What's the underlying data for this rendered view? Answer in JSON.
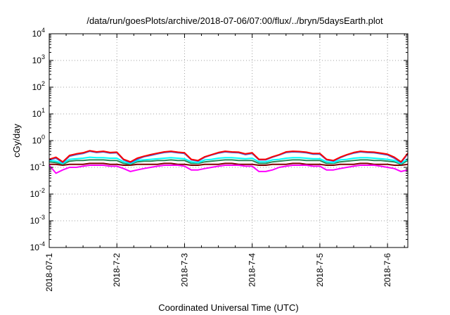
{
  "chart_data": {
    "type": "line",
    "title": "/data/run/goesPlots/archive/2018-07-06/07:00/flux/../bryn/5daysEarth.plot",
    "xlabel": "Coordinated Universal Time (UTC)",
    "ylabel": "cGy/day",
    "yscale": "log",
    "ylim": [
      0.0001,
      10000
    ],
    "xlim": [
      0,
      5.3
    ],
    "grid": true,
    "legend": "none",
    "x_tick_labels": [
      "2018-07-1",
      "2018-7-2",
      "2018-7-3",
      "2018-7-4",
      "2018-7-5",
      "2018-7-6"
    ],
    "x_tick_values": [
      0,
      1,
      2,
      3,
      4,
      5
    ],
    "y_tick_labels": [
      {
        "base": "10",
        "exp": "-4"
      },
      {
        "base": "10",
        "exp": "-3"
      },
      {
        "base": "10",
        "exp": "-2"
      },
      {
        "base": "10",
        "exp": "-1"
      },
      {
        "base": "10",
        "exp": "0"
      },
      {
        "base": "10",
        "exp": "1"
      },
      {
        "base": "10",
        "exp": "2"
      },
      {
        "base": "10",
        "exp": "3"
      },
      {
        "base": "10",
        "exp": "4"
      }
    ],
    "y_tick_values": [
      0.0001,
      0.001,
      0.01,
      0.1,
      1,
      10,
      100,
      1000,
      10000
    ],
    "x": [
      0,
      0.1,
      0.2,
      0.3,
      0.4,
      0.5,
      0.6,
      0.7,
      0.8,
      0.9,
      1.0,
      1.1,
      1.2,
      1.3,
      1.4,
      1.5,
      1.6,
      1.7,
      1.8,
      1.9,
      2.0,
      2.1,
      2.2,
      2.3,
      2.4,
      2.5,
      2.6,
      2.7,
      2.8,
      2.9,
      3.0,
      3.1,
      3.2,
      3.3,
      3.4,
      3.5,
      3.6,
      3.7,
      3.8,
      3.9,
      4.0,
      4.1,
      4.2,
      4.3,
      4.4,
      4.5,
      4.6,
      4.7,
      4.8,
      4.9,
      5.0,
      5.1,
      5.2,
      5.3
    ],
    "series": [
      {
        "color": "#ff0000",
        "values": [
          0.2,
          0.24,
          0.16,
          0.28,
          0.32,
          0.35,
          0.42,
          0.38,
          0.4,
          0.36,
          0.37,
          0.2,
          0.16,
          0.22,
          0.26,
          0.3,
          0.34,
          0.38,
          0.4,
          0.37,
          0.35,
          0.2,
          0.18,
          0.25,
          0.3,
          0.36,
          0.4,
          0.38,
          0.37,
          0.32,
          0.35,
          0.2,
          0.2,
          0.25,
          0.3,
          0.38,
          0.4,
          0.39,
          0.37,
          0.33,
          0.33,
          0.2,
          0.18,
          0.24,
          0.3,
          0.36,
          0.4,
          0.38,
          0.37,
          0.34,
          0.31,
          0.24,
          0.16,
          0.34
        ]
      },
      {
        "color": "#4169e1",
        "values": [
          0.19,
          0.22,
          0.15,
          0.26,
          0.3,
          0.33,
          0.4,
          0.36,
          0.38,
          0.34,
          0.35,
          0.19,
          0.15,
          0.2,
          0.25,
          0.28,
          0.32,
          0.36,
          0.38,
          0.35,
          0.33,
          0.19,
          0.17,
          0.24,
          0.29,
          0.34,
          0.38,
          0.36,
          0.35,
          0.3,
          0.33,
          0.19,
          0.19,
          0.24,
          0.29,
          0.36,
          0.38,
          0.37,
          0.35,
          0.31,
          0.31,
          0.19,
          0.17,
          0.23,
          0.29,
          0.34,
          0.38,
          0.36,
          0.35,
          0.32,
          0.29,
          0.22,
          0.15,
          0.32
        ]
      },
      {
        "color": "#00ffff",
        "values": [
          0.18,
          0.17,
          0.14,
          0.2,
          0.21,
          0.22,
          0.24,
          0.23,
          0.23,
          0.22,
          0.22,
          0.16,
          0.14,
          0.18,
          0.19,
          0.2,
          0.21,
          0.22,
          0.23,
          0.22,
          0.21,
          0.16,
          0.15,
          0.19,
          0.2,
          0.22,
          0.23,
          0.23,
          0.22,
          0.21,
          0.22,
          0.16,
          0.16,
          0.19,
          0.2,
          0.22,
          0.23,
          0.23,
          0.22,
          0.21,
          0.21,
          0.16,
          0.15,
          0.19,
          0.2,
          0.22,
          0.23,
          0.23,
          0.22,
          0.21,
          0.2,
          0.18,
          0.14,
          0.21
        ]
      },
      {
        "color": "#2e8b57",
        "values": [
          0.16,
          0.15,
          0.13,
          0.17,
          0.18,
          0.18,
          0.19,
          0.19,
          0.19,
          0.18,
          0.18,
          0.14,
          0.13,
          0.16,
          0.17,
          0.17,
          0.18,
          0.18,
          0.19,
          0.18,
          0.18,
          0.14,
          0.14,
          0.16,
          0.17,
          0.18,
          0.19,
          0.19,
          0.18,
          0.18,
          0.18,
          0.14,
          0.14,
          0.16,
          0.17,
          0.18,
          0.19,
          0.19,
          0.18,
          0.18,
          0.18,
          0.14,
          0.14,
          0.16,
          0.17,
          0.18,
          0.19,
          0.19,
          0.18,
          0.18,
          0.17,
          0.16,
          0.13,
          0.18
        ]
      },
      {
        "color": "#ff00ff",
        "values": [
          0.12,
          0.06,
          0.08,
          0.1,
          0.1,
          0.11,
          0.12,
          0.12,
          0.12,
          0.11,
          0.11,
          0.09,
          0.07,
          0.08,
          0.09,
          0.1,
          0.11,
          0.12,
          0.12,
          0.12,
          0.11,
          0.08,
          0.08,
          0.09,
          0.1,
          0.11,
          0.12,
          0.12,
          0.12,
          0.11,
          0.11,
          0.07,
          0.07,
          0.08,
          0.1,
          0.11,
          0.12,
          0.12,
          0.12,
          0.11,
          0.11,
          0.08,
          0.08,
          0.09,
          0.1,
          0.11,
          0.12,
          0.12,
          0.12,
          0.11,
          0.1,
          0.09,
          0.07,
          0.08
        ]
      },
      {
        "color": "#800000",
        "values": [
          0.13,
          0.13,
          0.12,
          0.13,
          0.13,
          0.13,
          0.14,
          0.14,
          0.14,
          0.13,
          0.13,
          0.12,
          0.12,
          0.13,
          0.13,
          0.13,
          0.13,
          0.14,
          0.14,
          0.13,
          0.13,
          0.12,
          0.12,
          0.13,
          0.13,
          0.13,
          0.14,
          0.14,
          0.13,
          0.13,
          0.13,
          0.12,
          0.12,
          0.13,
          0.13,
          0.13,
          0.14,
          0.14,
          0.13,
          0.13,
          0.13,
          0.12,
          0.12,
          0.13,
          0.13,
          0.13,
          0.14,
          0.14,
          0.13,
          0.13,
          0.13,
          0.12,
          0.12,
          0.13
        ]
      }
    ]
  }
}
